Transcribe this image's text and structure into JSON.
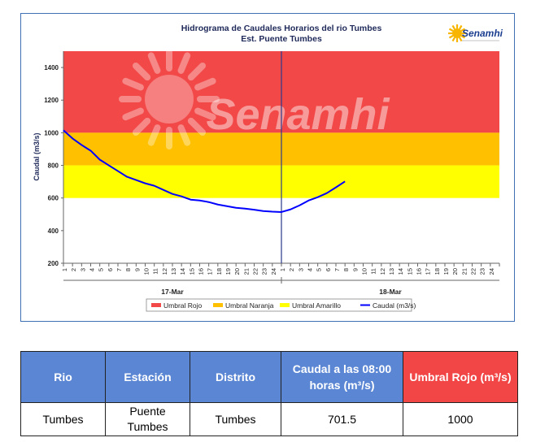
{
  "chart_data": {
    "type": "line",
    "title": "Hidrograma de Caudales Horarios del rio Tumbes",
    "subtitle": "Est. Puente Tumbes",
    "ylabel": "Caudal  (m3/s)",
    "ylim": [
      200,
      1500
    ],
    "yticks": [
      "200",
      "400",
      "600",
      "800",
      "1000",
      "1200",
      "1400"
    ],
    "day_labels": [
      "17-Mar",
      "18-Mar"
    ],
    "x_hour_labels": [
      "1",
      "2",
      "3",
      "4",
      "5",
      "6",
      "7",
      "8",
      "9",
      "10",
      "11",
      "12",
      "13",
      "14",
      "15",
      "16",
      "17",
      "18",
      "19",
      "20",
      "21",
      "22",
      "23",
      "24"
    ],
    "watermark": "Senamhi",
    "logo": "Senamhi",
    "thresholds": [
      {
        "name": "Umbral Rojo",
        "from": 1000,
        "to": 1500,
        "color": "#f24848"
      },
      {
        "name": "Umbral Naranja",
        "from": 800,
        "to": 1000,
        "color": "#ffc000"
      },
      {
        "name": "Umbral Amarillo",
        "from": 600,
        "to": 800,
        "color": "#ffff00"
      }
    ],
    "series": [
      {
        "name": "Caudal (m3/s)",
        "color": "#0000ff",
        "x": [
          0,
          1,
          2,
          3,
          4,
          5,
          6,
          7,
          8,
          9,
          10,
          11,
          12,
          13,
          14,
          15,
          16,
          17,
          18,
          19,
          20,
          21,
          22,
          23,
          24,
          25,
          26,
          27,
          28,
          29,
          30,
          31
        ],
        "values": [
          1015,
          965,
          925,
          890,
          835,
          800,
          765,
          730,
          710,
          690,
          675,
          650,
          625,
          610,
          590,
          585,
          575,
          560,
          550,
          540,
          535,
          528,
          520,
          516,
          514,
          530,
          555,
          585,
          605,
          630,
          665,
          701.5
        ]
      }
    ],
    "grid": false,
    "legend_position": "bottom"
  },
  "table": {
    "headers": [
      "Rio",
      "Estación",
      "Distrito",
      "Caudal a las 08:00 horas (m³/s)",
      "Umbral Rojo (m³/s)"
    ],
    "row": [
      "Tumbes",
      "Puente Tumbes",
      "Tumbes",
      "701.5",
      "1000"
    ]
  }
}
